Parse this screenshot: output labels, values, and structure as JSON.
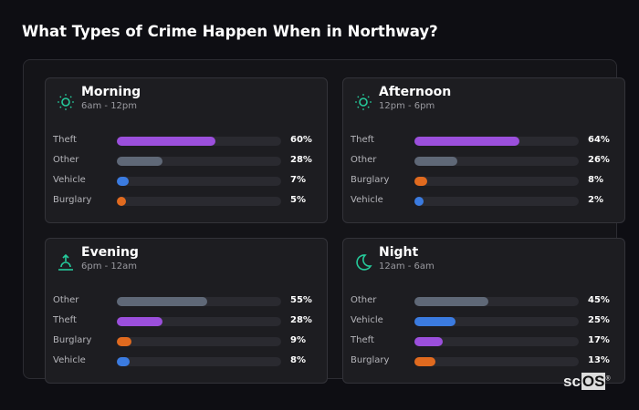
{
  "title": "What Types of Crime Happen When in Northway?",
  "colors": {
    "Theft": "#9b4fdc",
    "Other": "#5f6877",
    "Vehicle": "#3b7be0",
    "Burglary": "#e06a1f",
    "icon": "#25c99a"
  },
  "chart_data": {
    "type": "bar",
    "panels": [
      {
        "title": "Morning",
        "subtitle": "6am - 12pm",
        "icon": "sun-icon",
        "rows": [
          {
            "label": "Theft",
            "value": 60,
            "text": "60%"
          },
          {
            "label": "Other",
            "value": 28,
            "text": "28%"
          },
          {
            "label": "Vehicle",
            "value": 7,
            "text": "7%"
          },
          {
            "label": "Burglary",
            "value": 5,
            "text": "5%"
          }
        ]
      },
      {
        "title": "Afternoon",
        "subtitle": "12pm - 6pm",
        "icon": "sun-icon",
        "rows": [
          {
            "label": "Theft",
            "value": 64,
            "text": "64%"
          },
          {
            "label": "Other",
            "value": 26,
            "text": "26%"
          },
          {
            "label": "Burglary",
            "value": 8,
            "text": "8%"
          },
          {
            "label": "Vehicle",
            "value": 2,
            "text": "2%"
          }
        ]
      },
      {
        "title": "Evening",
        "subtitle": "6pm - 12am",
        "icon": "sunset-icon",
        "rows": [
          {
            "label": "Other",
            "value": 55,
            "text": "55%"
          },
          {
            "label": "Theft",
            "value": 28,
            "text": "28%"
          },
          {
            "label": "Burglary",
            "value": 9,
            "text": "9%"
          },
          {
            "label": "Vehicle",
            "value": 8,
            "text": "8%"
          }
        ]
      },
      {
        "title": "Night",
        "subtitle": "12am - 6am",
        "icon": "moon-icon",
        "rows": [
          {
            "label": "Other",
            "value": 45,
            "text": "45%"
          },
          {
            "label": "Vehicle",
            "value": 25,
            "text": "25%"
          },
          {
            "label": "Theft",
            "value": 17,
            "text": "17%"
          },
          {
            "label": "Burglary",
            "value": 13,
            "text": "13%"
          }
        ]
      }
    ],
    "xlim": [
      0,
      100
    ]
  },
  "logo": {
    "text_a": "sc",
    "text_b": "OS",
    "mark": "®"
  }
}
